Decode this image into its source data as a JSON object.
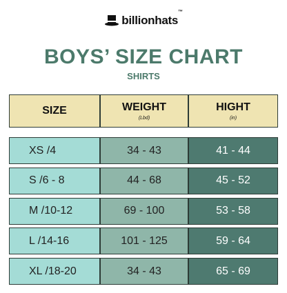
{
  "logo": {
    "text": "billionhats",
    "trademark": "™"
  },
  "header": {
    "title": "BOYS’ SIZE CHART",
    "subtitle": "SHIRTS"
  },
  "table": {
    "columns": [
      {
        "label": "SIZE"
      },
      {
        "label": "WEIGHT",
        "unit": "(Lbd)"
      },
      {
        "label": "HIGHT",
        "unit": "(in)"
      }
    ],
    "rows": [
      [
        "XS /4",
        "34 - 43",
        "41 - 44"
      ],
      [
        "S /6 - 8",
        "44 - 68",
        "45 - 52"
      ],
      [
        "M /10-12",
        "69 - 100",
        "53 - 58"
      ],
      [
        "L /14-16",
        "101 - 125",
        "59 - 64"
      ],
      [
        "XL /18-20",
        "34 - 43",
        "65 - 69"
      ]
    ]
  }
}
